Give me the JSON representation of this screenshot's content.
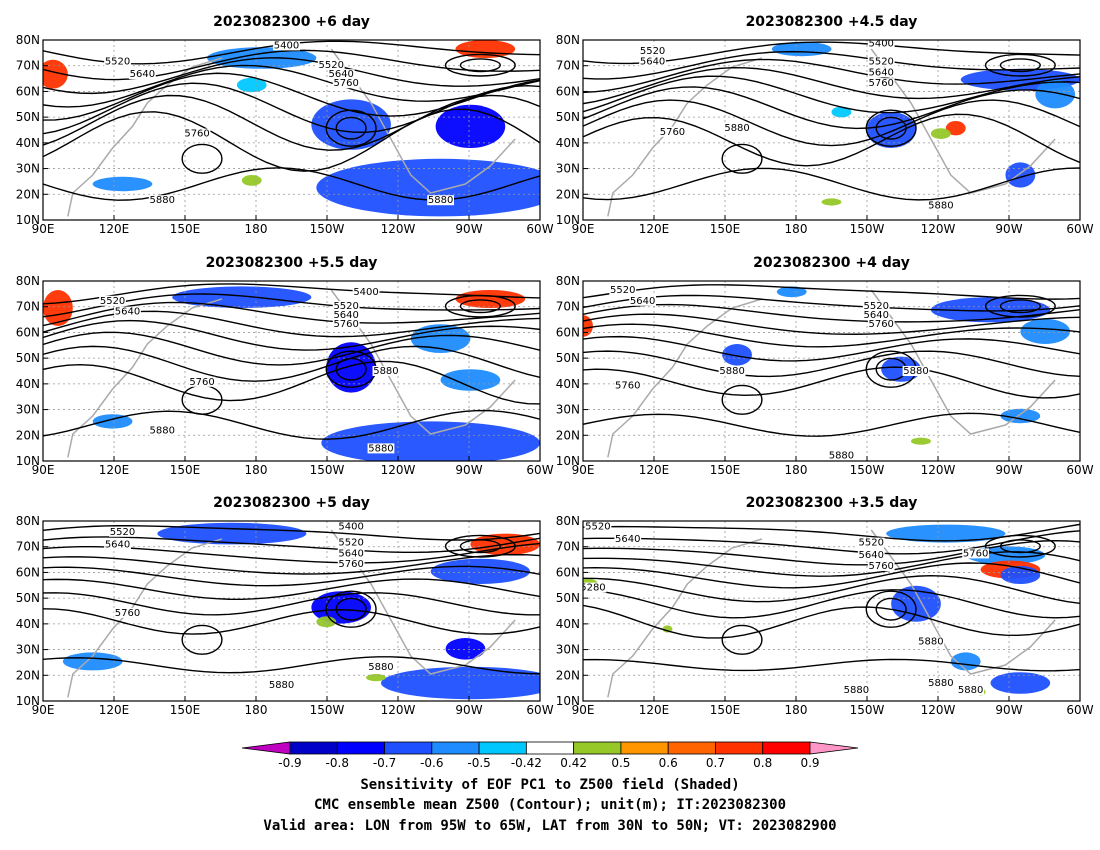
{
  "panels": [
    {
      "title": "2023082300 +6 day",
      "contour_labels": [
        "5400",
        "5520",
        "5640",
        "5520",
        "5640",
        "5760",
        "5760",
        "5880",
        "5880"
      ]
    },
    {
      "title": "2023082300 +4.5 day",
      "contour_labels": [
        "5400",
        "5520",
        "5640",
        "5520",
        "5640",
        "5760",
        "5760",
        "5880",
        "5880"
      ]
    },
    {
      "title": "2023082300 +5.5 day",
      "contour_labels": [
        "5400",
        "5520",
        "5640",
        "5520",
        "5640",
        "5760",
        "5760",
        "5880",
        "5880",
        "5880"
      ]
    },
    {
      "title": "2023082300 +4 day",
      "contour_labels": [
        "5520",
        "5640",
        "5520",
        "5640",
        "5760",
        "5760",
        "5880",
        "5880",
        "5880"
      ]
    },
    {
      "title": "2023082300 +5 day",
      "contour_labels": [
        "5400",
        "5520",
        "5640",
        "5520",
        "5640",
        "5760",
        "5760",
        "5880",
        "5880"
      ]
    },
    {
      "title": "2023082300 +3.5 day",
      "contour_labels": [
        "5520",
        "5640",
        "5520",
        "5640",
        "5760",
        "5280",
        "5760",
        "5880",
        "5880",
        "5880",
        "5880"
      ]
    }
  ],
  "axes": {
    "lon_ticks": [
      "90E",
      "120E",
      "150E",
      "180",
      "150W",
      "120W",
      "90W",
      "60W"
    ],
    "lat_ticks": [
      "80N",
      "70N",
      "60N",
      "50N",
      "40N",
      "30N",
      "20N",
      "10N"
    ]
  },
  "colorbar": {
    "labels": [
      "-0.9",
      "-0.8",
      "-0.7",
      "-0.6",
      "-0.5",
      "-0.42",
      "0.42",
      "0.5",
      "0.6",
      "0.7",
      "0.8",
      "0.9"
    ],
    "colors": [
      "#c000c0",
      "#0000c8",
      "#0000ff",
      "#1e50ff",
      "#1e8cff",
      "#00c8ff",
      "#ffffff",
      "#96c828",
      "#ff9600",
      "#ff6400",
      "#ff3200",
      "#ff0000",
      "#ff96c8"
    ]
  },
  "captions": [
    "Sensitivity of EOF PC1 to Z500 field (Shaded)",
    "CMC ensemble mean Z500 (Contour); unit(m); IT:2023082300",
    "Valid area: LON from 95W to 65W, LAT from 30N to 50N; VT: 2023082900"
  ]
}
